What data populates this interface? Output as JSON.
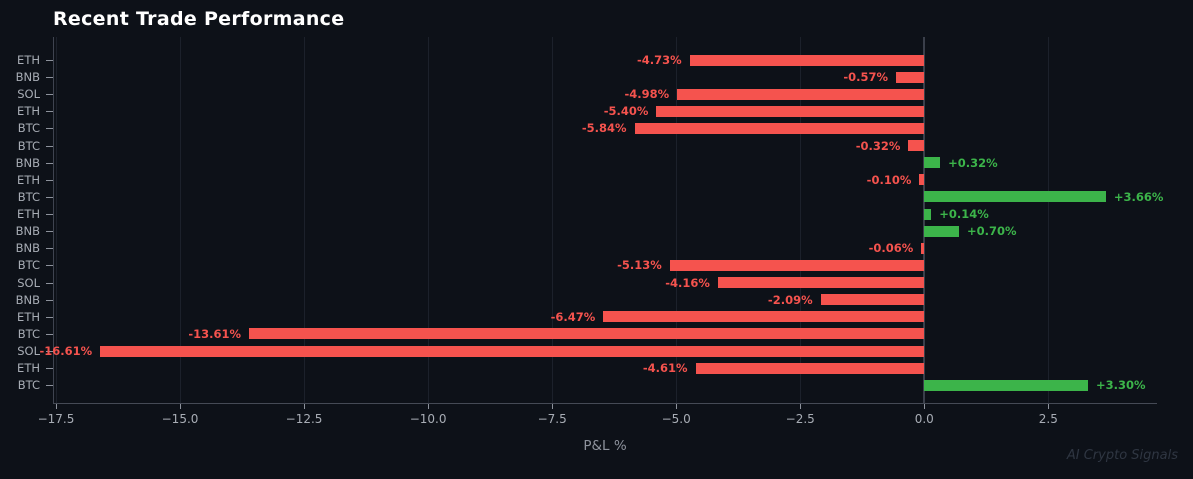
{
  "header": {
    "title": "Recent Trade Performance"
  },
  "footer": {
    "watermark": "AI Crypto Signals"
  },
  "chart_data": {
    "type": "bar",
    "orientation": "horizontal",
    "title": "Recent Trade Performance",
    "xlabel": "P&L %",
    "ylabel": "",
    "xlim": [
      -17.56,
      4.69
    ],
    "grid": true,
    "legend": false,
    "xticks": [
      -17.5,
      -15.0,
      -12.5,
      -10.0,
      -7.5,
      -5.0,
      -2.5,
      0.0,
      2.5
    ],
    "xtick_labels": [
      "−17.5",
      "−15.0",
      "−12.5",
      "−10.0",
      "−7.5",
      "−5.0",
      "−2.5",
      "0.0",
      "2.5"
    ],
    "categories": [
      "ETH",
      "BNB",
      "SOL",
      "ETH",
      "BTC",
      "BTC",
      "BNB",
      "ETH",
      "BTC",
      "ETH",
      "BNB",
      "BNB",
      "BTC",
      "SOL",
      "BNB",
      "ETH",
      "BTC",
      "SOL",
      "ETH",
      "BTC"
    ],
    "values": [
      -4.73,
      -0.57,
      -4.98,
      -5.4,
      -5.84,
      -0.32,
      0.32,
      -0.1,
      3.66,
      0.14,
      0.7,
      -0.06,
      -5.13,
      -4.16,
      -2.09,
      -6.47,
      -13.61,
      -16.61,
      -4.61,
      3.3
    ],
    "bar_labels": [
      "-4.73%",
      "-0.57%",
      "-4.98%",
      "-5.40%",
      "-5.84%",
      "-0.32%",
      "+0.32%",
      "-0.10%",
      "+3.66%",
      "+0.14%",
      "+0.70%",
      "-0.06%",
      "-5.13%",
      "-4.16%",
      "-2.09%",
      "-6.47%",
      "-13.61%",
      "-16.61%",
      "-4.61%",
      "+3.30%"
    ],
    "colors": {
      "positive": "#3cb44a",
      "negative": "#f5534e",
      "background": "#0d1118",
      "grid": "#1c212b",
      "zero_line": "#3a3f4a",
      "tick_text": "#a8adb5",
      "title_text": "#ffffff",
      "xlabel_text": "#8d929c",
      "watermark_text": "#2f3642"
    }
  }
}
